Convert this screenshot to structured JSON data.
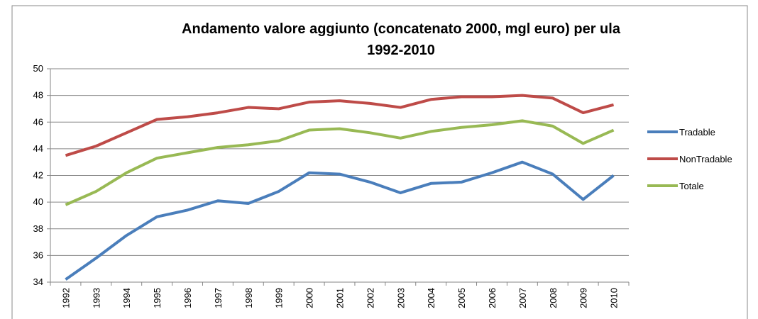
{
  "chart_data": {
    "type": "line",
    "title": [
      "Andamento valore aggiunto (concatenato 2000, mgl euro) per ula",
      "1992-2010"
    ],
    "categories": [
      "1992",
      "1993",
      "1994",
      "1995",
      "1996",
      "1997",
      "1998",
      "1999",
      "2000",
      "2001",
      "2002",
      "2003",
      "2004",
      "2005",
      "2006",
      "2007",
      "2008",
      "2009",
      "2010"
    ],
    "series": [
      {
        "name": "Tradable",
        "color": "#4a7ebb",
        "values": [
          34.2,
          35.8,
          37.5,
          38.9,
          39.4,
          40.1,
          39.9,
          40.8,
          42.2,
          42.1,
          41.5,
          40.7,
          41.4,
          41.5,
          42.2,
          43.0,
          42.1,
          40.2,
          42.0
        ]
      },
      {
        "name": "NonTradable",
        "color": "#be4b48",
        "values": [
          43.5,
          44.2,
          45.2,
          46.2,
          46.4,
          46.7,
          47.1,
          47.0,
          47.5,
          47.6,
          47.4,
          47.1,
          47.7,
          47.9,
          47.9,
          48.0,
          47.8,
          46.7,
          47.3
        ]
      },
      {
        "name": "Totale",
        "color": "#98b954",
        "values": [
          39.8,
          40.8,
          42.2,
          43.3,
          43.7,
          44.1,
          44.3,
          44.6,
          45.4,
          45.5,
          45.2,
          44.8,
          45.3,
          45.6,
          45.8,
          46.1,
          45.7,
          44.4,
          45.4
        ]
      }
    ],
    "ylim": [
      34,
      50
    ],
    "yticks": [
      34,
      36,
      38,
      40,
      42,
      44,
      46,
      48,
      50
    ],
    "grid": true,
    "legend": "right"
  }
}
